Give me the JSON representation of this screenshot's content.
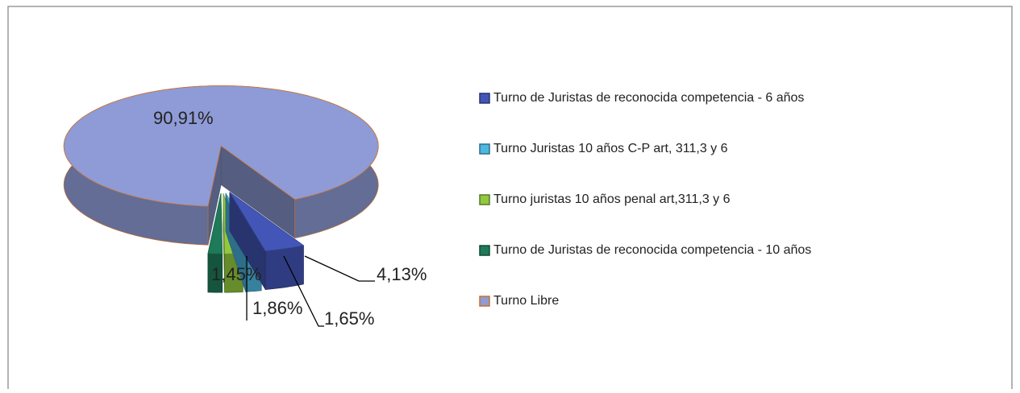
{
  "chart_data": {
    "type": "pie3d",
    "categories": [
      "Turno de Juristas de reconocida competencia - 6 años",
      "Turno Juristas 10 años C-P art, 311,3 y 6",
      "Turno juristas 10 años penal art,311,3 y 6",
      "Turno de Juristas de reconocida competencia - 10 años",
      "Turno Libre"
    ],
    "values": [
      4.13,
      1.65,
      1.86,
      1.45,
      90.91
    ],
    "value_labels": [
      "4,13%",
      "1,65%",
      "1,86%",
      "1,45%",
      "90,91%"
    ],
    "colors": [
      "#4356b8",
      "#4db8e2",
      "#92c83e",
      "#1e7a58",
      "#8e9bd6"
    ],
    "legend": "right"
  }
}
